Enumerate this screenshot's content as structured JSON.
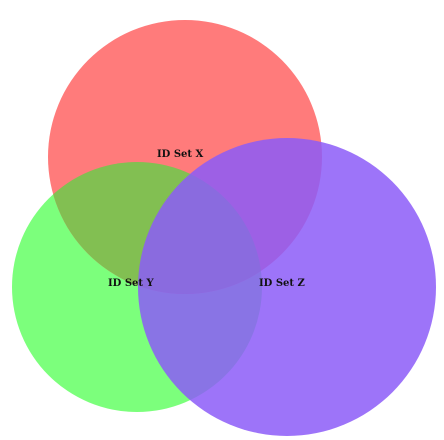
{
  "diagram": {
    "type": "venn-3",
    "sets": [
      {
        "name": "ID Set X",
        "color": "#ff7b7b",
        "opacity": 1.0
      },
      {
        "name": "ID Set Y",
        "color": "#7cff7c",
        "opacity": 1.0
      },
      {
        "name": "ID Set Z",
        "color": "#8c5cf8",
        "opacity": 0.85
      }
    ]
  }
}
